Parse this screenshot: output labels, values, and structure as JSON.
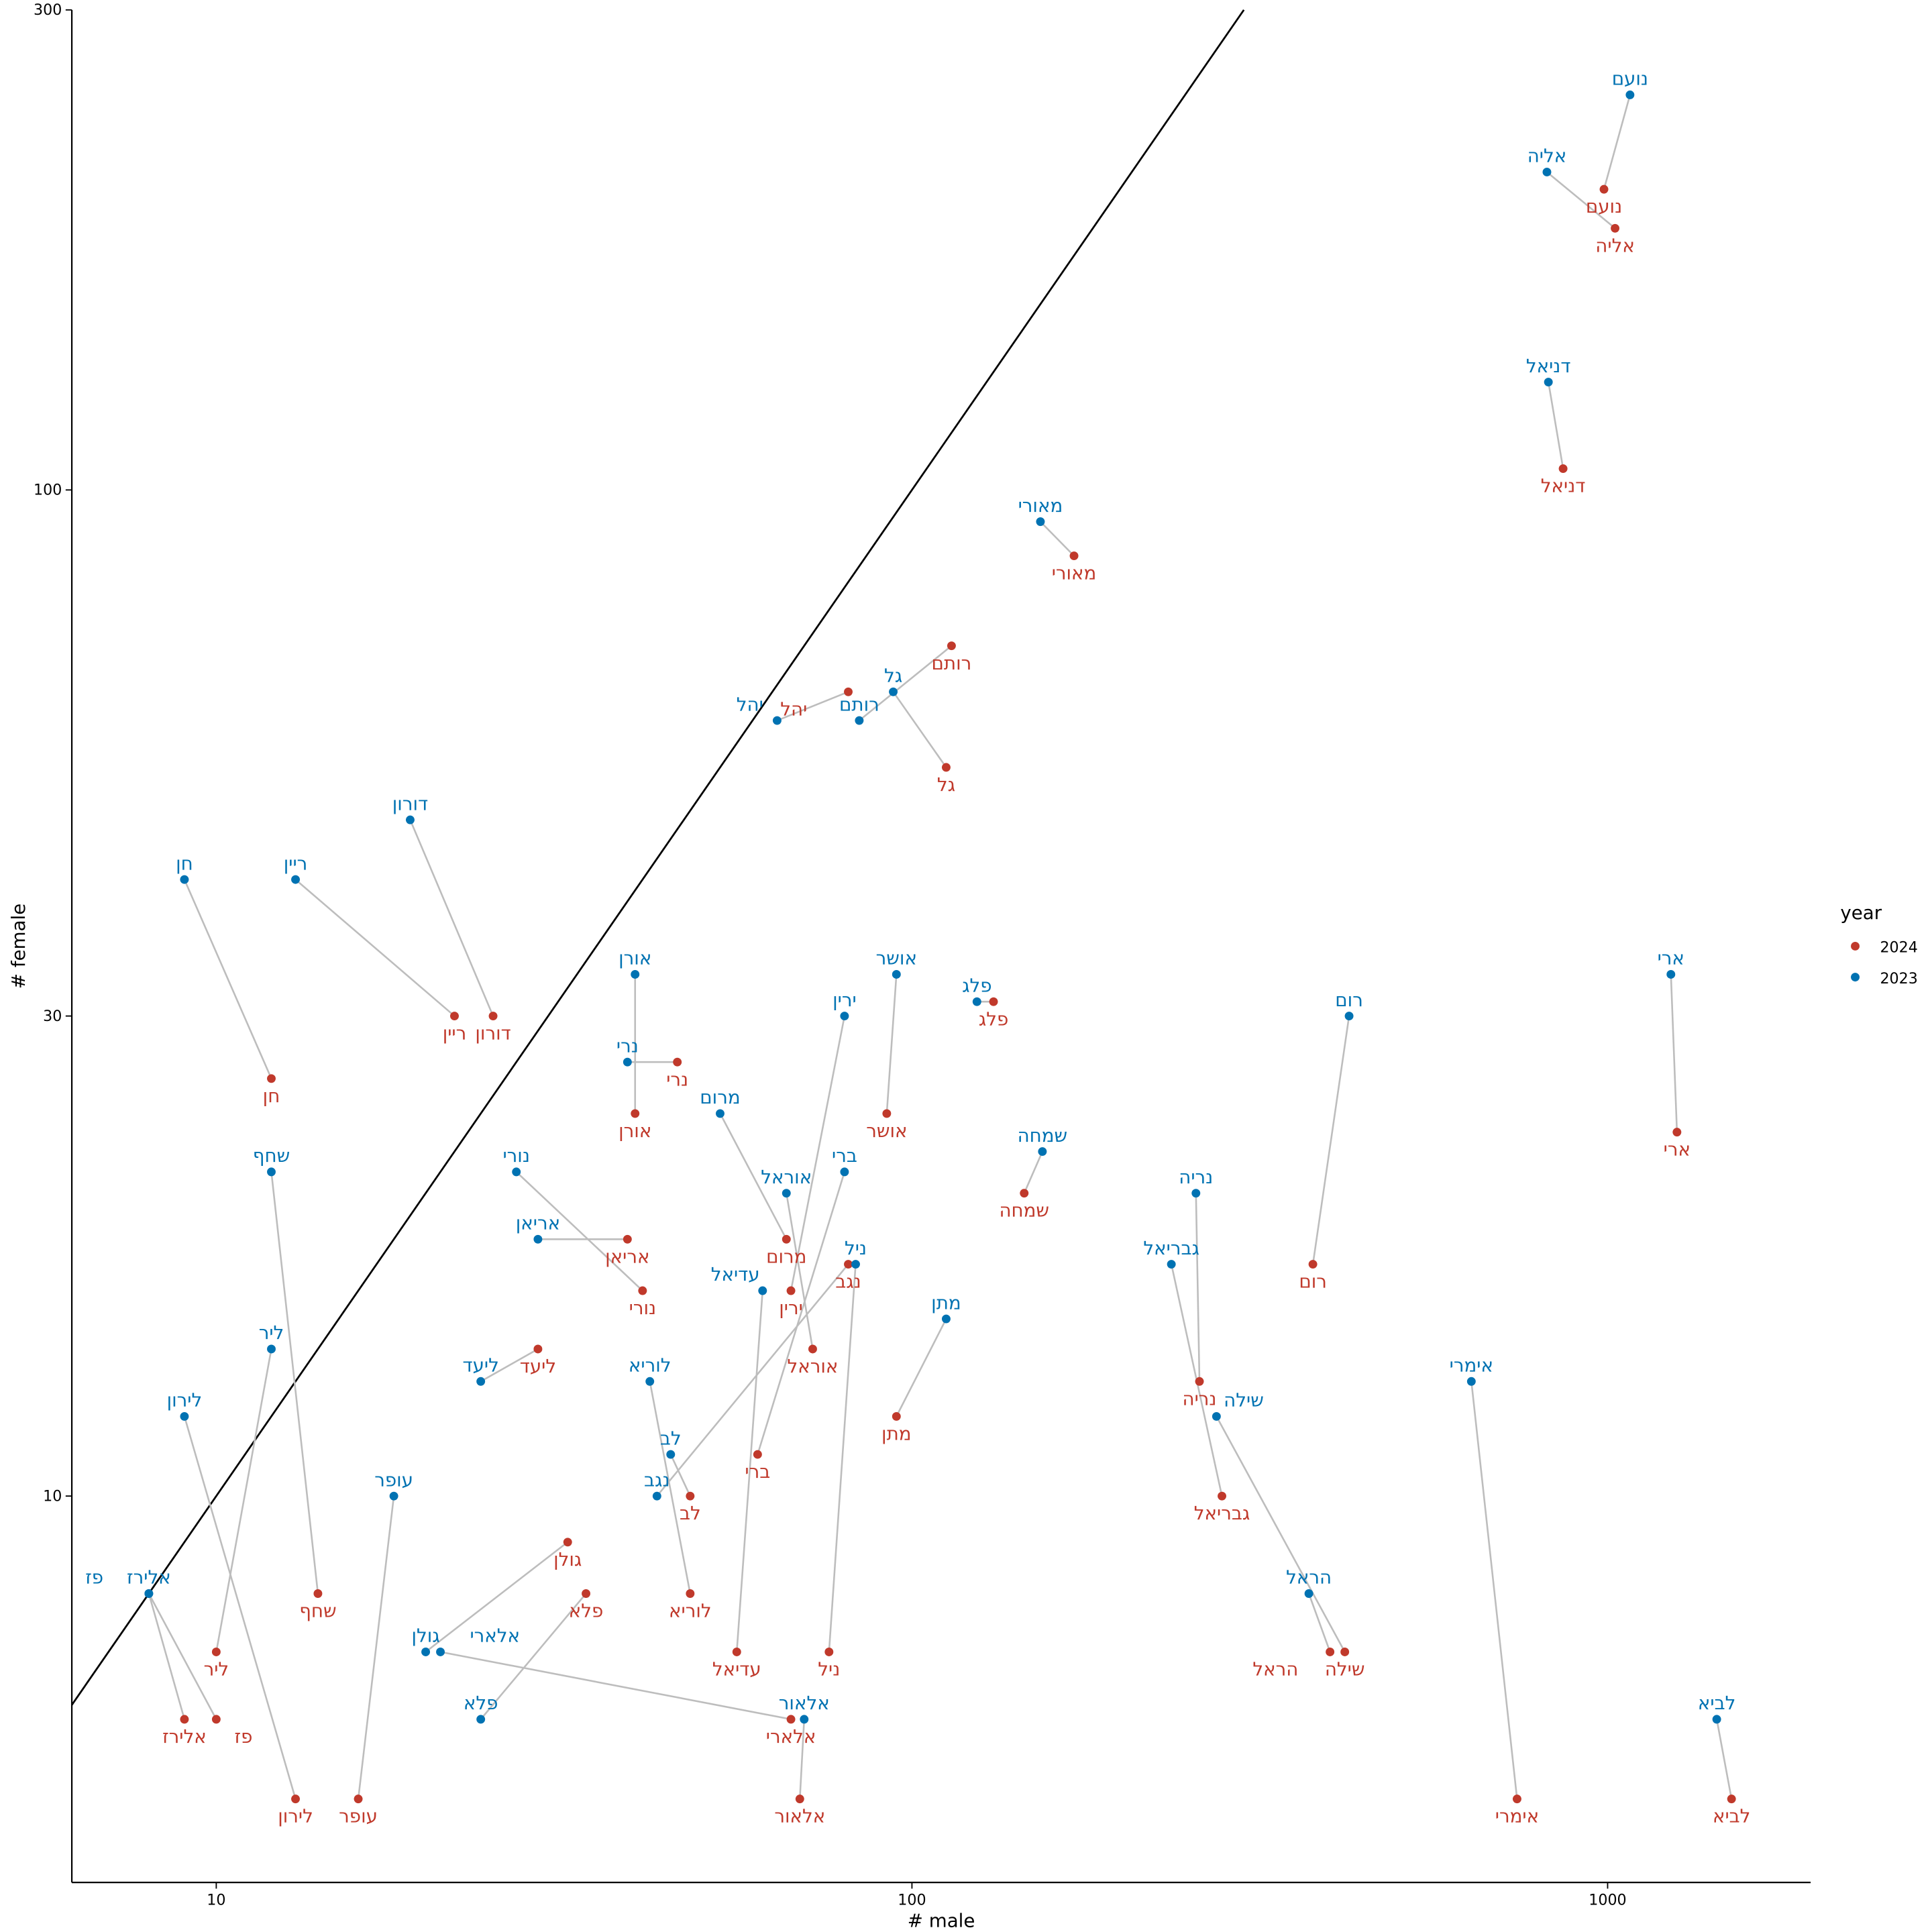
{
  "chart_data": {
    "type": "scatter",
    "xlabel": "# male",
    "ylabel": "# female",
    "xscale": "log",
    "yscale": "log",
    "xlim": [
      6.2,
      1958
    ],
    "ylim": [
      4.13,
      300
    ],
    "xticks": [
      10,
      100,
      1000
    ],
    "yticks": [
      10,
      30,
      100,
      300
    ],
    "grid": false,
    "reference_line": "y = x",
    "legend": {
      "title": "year",
      "placement": "right",
      "entries": [
        "2024",
        "2023"
      ]
    },
    "colors": {
      "2024": "#c0392b",
      "2023": "#0072b2",
      "connector": "#bdbdbd",
      "reference": "#000000"
    },
    "names": [
      {
        "name": "נועם",
        "y2024": [
          988,
          199
        ],
        "y2023": [
          1077,
          247
        ]
      },
      {
        "name": "אליה",
        "y2024": [
          1025,
          182
        ],
        "y2023": [
          818,
          207
        ]
      },
      {
        "name": "דניאל",
        "y2024": [
          863,
          105
        ],
        "y2023": [
          822,
          128
        ]
      },
      {
        "name": "מאורי",
        "y2024": [
          171,
          86
        ],
        "y2023": [
          153,
          93
        ]
      },
      {
        "name": "רותם",
        "y2024": [
          114,
          70
        ],
        "y2023": [
          84,
          59
        ]
      },
      {
        "name": "יהל",
        "y2024": [
          81,
          63
        ],
        "y2023": [
          64,
          59
        ]
      },
      {
        "name": "גל",
        "y2024": [
          112,
          53
        ],
        "y2023": [
          94,
          63
        ]
      },
      {
        "name": "דורון",
        "y2024": [
          25,
          30
        ],
        "y2023": [
          19,
          47
        ]
      },
      {
        "name": "ריין",
        "y2024": [
          22,
          30
        ],
        "y2023": [
          13,
          41
        ]
      },
      {
        "name": "חן",
        "y2024": [
          12,
          26
        ],
        "y2023": [
          9,
          41
        ]
      },
      {
        "name": "אורן",
        "y2024": [
          40,
          24
        ],
        "y2023": [
          40,
          33
        ]
      },
      {
        "name": "נרי",
        "y2024": [
          46,
          27
        ],
        "y2023": [
          39,
          27
        ]
      },
      {
        "name": "אושר",
        "y2024": [
          92,
          24
        ],
        "y2023": [
          95,
          33
        ]
      },
      {
        "name": "פלג",
        "y2024": [
          131,
          31
        ],
        "y2023": [
          124,
          31
        ]
      },
      {
        "name": "ירין",
        "y2024": [
          67,
          16
        ],
        "y2023": [
          80,
          30
        ]
      },
      {
        "name": "מרום",
        "y2024": [
          66,
          18
        ],
        "y2023": [
          53,
          24
        ]
      },
      {
        "name": "שמחה",
        "y2024": [
          145,
          20
        ],
        "y2023": [
          154,
          22
        ]
      },
      {
        "name": "ברי",
        "y2024": [
          60,
          11
        ],
        "y2023": [
          80,
          21
        ]
      },
      {
        "name": "אוראל",
        "y2024": [
          72,
          14
        ],
        "y2023": [
          66,
          20
        ]
      },
      {
        "name": "נריה",
        "y2024": [
          259,
          13
        ],
        "y2023": [
          256,
          20
        ]
      },
      {
        "name": "רום",
        "y2024": [
          377,
          17
        ],
        "y2023": [
          425,
          30
        ]
      },
      {
        "name": "ארי",
        "y2024": [
          1258,
          23
        ],
        "y2023": [
          1233,
          33
        ]
      },
      {
        "name": "נורי",
        "y2024": [
          41,
          16
        ],
        "y2023": [
          27,
          21
        ]
      },
      {
        "name": "אריאן",
        "y2024": [
          39,
          18
        ],
        "y2023": [
          29,
          18
        ]
      },
      {
        "name": "נגב",
        "y2024": [
          81,
          17
        ],
        "y2023": [
          43,
          10
        ]
      },
      {
        "name": "ניל",
        "y2024": [
          76,
          7
        ],
        "y2023": [
          83,
          17
        ]
      },
      {
        "name": "גבריאל",
        "y2024": [
          279,
          10
        ],
        "y2023": [
          236,
          17
        ]
      },
      {
        "name": "עדיאל",
        "y2024": [
          56,
          7
        ],
        "y2023": [
          61,
          16
        ]
      },
      {
        "name": "מתן",
        "y2024": [
          95,
          12
        ],
        "y2023": [
          112,
          15
        ]
      },
      {
        "name": "ליעד",
        "y2024": [
          29,
          14
        ],
        "y2023": [
          24,
          13
        ]
      },
      {
        "name": "לוריא",
        "y2024": [
          48,
          8
        ],
        "y2023": [
          42,
          13
        ]
      },
      {
        "name": "אימרי",
        "y2024": [
          741,
          5
        ],
        "y2023": [
          637,
          13
        ]
      },
      {
        "name": "שילה",
        "y2024": [
          419,
          7
        ],
        "y2023": [
          274,
          12
        ]
      },
      {
        "name": "ליר",
        "y2024": [
          10,
          7
        ],
        "y2023": [
          12,
          14
        ]
      },
      {
        "name": "לירון",
        "y2024": [
          13,
          5
        ],
        "y2023": [
          9,
          12
        ]
      },
      {
        "name": "לב",
        "y2024": [
          48,
          10
        ],
        "y2023": [
          45,
          11
        ]
      },
      {
        "name": "שחף",
        "y2024": [
          14,
          8
        ],
        "y2023": [
          12,
          21
        ]
      },
      {
        "name": "עופר",
        "y2024": [
          16,
          5
        ],
        "y2023": [
          18,
          10
        ]
      },
      {
        "name": "גולן",
        "y2024": [
          32,
          9
        ],
        "y2023": [
          20,
          7
        ]
      },
      {
        "name": "אלארי",
        "y2024": [
          67,
          6
        ],
        "y2023": [
          21,
          7
        ]
      },
      {
        "name": "פלא",
        "y2024": [
          34,
          8
        ],
        "y2023": [
          24,
          6
        ]
      },
      {
        "name": "אלאור",
        "y2024": [
          69,
          5
        ],
        "y2023": [
          70,
          6
        ]
      },
      {
        "name": "הראל",
        "y2024": [
          399,
          7
        ],
        "y2023": [
          372,
          8
        ]
      },
      {
        "name": "אלירז",
        "y2024": [
          9,
          6
        ],
        "y2023": [
          8,
          8
        ]
      },
      {
        "name": "פז",
        "y2024": [
          10,
          6
        ],
        "y2023": [
          8,
          8
        ]
      },
      {
        "name": "לביא",
        "y2024": [
          1507,
          5
        ],
        "y2023": [
          1435,
          6
        ]
      }
    ]
  }
}
